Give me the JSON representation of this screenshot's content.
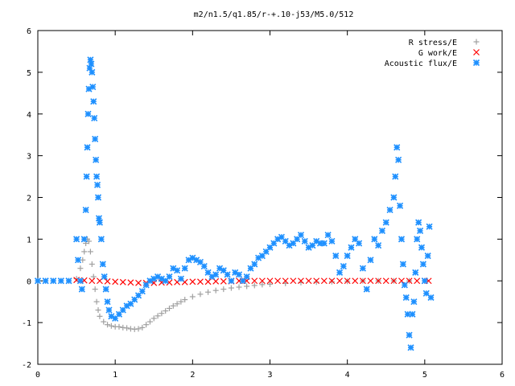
{
  "chart_data": {
    "type": "scatter",
    "title": "m2/n1.5/q1.85/r-+.10-j53/M5.0/512",
    "xlabel": "",
    "ylabel": "",
    "xlim": [
      0,
      6
    ],
    "ylim": [
      -2,
      6
    ],
    "xticks": [
      "0",
      "1",
      "2",
      "3",
      "4",
      "5",
      "6"
    ],
    "yticks": [
      "-2",
      "-1",
      "0",
      "1",
      "2",
      "3",
      "4",
      "5",
      "6"
    ],
    "grid": false,
    "legend_position": "top-right",
    "series": [
      {
        "name": "R stress/E",
        "marker": "plus",
        "color": "#a0a0a0",
        "points": [
          [
            0.0,
            0.0
          ],
          [
            0.1,
            0.0
          ],
          [
            0.2,
            0.0
          ],
          [
            0.3,
            0.0
          ],
          [
            0.4,
            0.0
          ],
          [
            0.5,
            0.05
          ],
          [
            0.55,
            0.3
          ],
          [
            0.58,
            0.5
          ],
          [
            0.6,
            0.7
          ],
          [
            0.62,
            0.9
          ],
          [
            0.64,
            1.0
          ],
          [
            0.66,
            0.95
          ],
          [
            0.68,
            0.7
          ],
          [
            0.7,
            0.4
          ],
          [
            0.72,
            0.1
          ],
          [
            0.74,
            -0.2
          ],
          [
            0.76,
            -0.5
          ],
          [
            0.78,
            -0.7
          ],
          [
            0.8,
            -0.85
          ],
          [
            0.85,
            -0.98
          ],
          [
            0.9,
            -1.05
          ],
          [
            0.95,
            -1.08
          ],
          [
            1.0,
            -1.1
          ],
          [
            1.05,
            -1.1
          ],
          [
            1.1,
            -1.12
          ],
          [
            1.15,
            -1.13
          ],
          [
            1.2,
            -1.15
          ],
          [
            1.25,
            -1.16
          ],
          [
            1.3,
            -1.15
          ],
          [
            1.35,
            -1.12
          ],
          [
            1.4,
            -1.05
          ],
          [
            1.45,
            -0.98
          ],
          [
            1.5,
            -0.9
          ],
          [
            1.55,
            -0.84
          ],
          [
            1.6,
            -0.78
          ],
          [
            1.65,
            -0.72
          ],
          [
            1.7,
            -0.66
          ],
          [
            1.75,
            -0.6
          ],
          [
            1.8,
            -0.55
          ],
          [
            1.85,
            -0.5
          ],
          [
            1.9,
            -0.45
          ],
          [
            2.0,
            -0.38
          ],
          [
            2.1,
            -0.32
          ],
          [
            2.2,
            -0.27
          ],
          [
            2.3,
            -0.23
          ],
          [
            2.4,
            -0.2
          ],
          [
            2.5,
            -0.17
          ],
          [
            2.6,
            -0.15
          ],
          [
            2.7,
            -0.13
          ],
          [
            2.8,
            -0.11
          ],
          [
            2.9,
            -0.09
          ],
          [
            3.0,
            -0.08
          ],
          [
            3.2,
            -0.06
          ],
          [
            3.4,
            -0.04
          ],
          [
            3.6,
            -0.03
          ],
          [
            3.8,
            -0.02
          ],
          [
            4.0,
            -0.01
          ],
          [
            4.2,
            0.0
          ],
          [
            4.4,
            0.0
          ],
          [
            4.6,
            0.0
          ],
          [
            4.8,
            0.0
          ],
          [
            5.0,
            0.0
          ]
        ]
      },
      {
        "name": "G work/E",
        "marker": "cross",
        "color": "#ff0000",
        "points": [
          [
            0.5,
            0.02
          ],
          [
            0.6,
            0.01
          ],
          [
            0.7,
            0.0
          ],
          [
            0.8,
            0.0
          ],
          [
            0.9,
            -0.01
          ],
          [
            1.0,
            -0.02
          ],
          [
            1.1,
            -0.03
          ],
          [
            1.2,
            -0.04
          ],
          [
            1.3,
            -0.05
          ],
          [
            1.4,
            -0.05
          ],
          [
            1.5,
            -0.05
          ],
          [
            1.6,
            -0.04
          ],
          [
            1.7,
            -0.04
          ],
          [
            1.8,
            -0.03
          ],
          [
            1.9,
            -0.03
          ],
          [
            2.0,
            -0.02
          ],
          [
            2.1,
            -0.02
          ],
          [
            2.2,
            -0.02
          ],
          [
            2.3,
            -0.01
          ],
          [
            2.4,
            -0.01
          ],
          [
            2.5,
            -0.01
          ],
          [
            2.6,
            0.0
          ],
          [
            2.7,
            0.0
          ],
          [
            2.8,
            0.0
          ],
          [
            2.9,
            0.0
          ],
          [
            3.0,
            0.0
          ],
          [
            3.1,
            0.0
          ],
          [
            3.2,
            0.0
          ],
          [
            3.3,
            0.0
          ],
          [
            3.4,
            0.0
          ],
          [
            3.5,
            0.0
          ],
          [
            3.6,
            0.0
          ],
          [
            3.7,
            0.0
          ],
          [
            3.8,
            0.0
          ],
          [
            3.9,
            0.0
          ],
          [
            4.0,
            0.0
          ],
          [
            4.1,
            0.0
          ],
          [
            4.2,
            0.0
          ],
          [
            4.3,
            0.0
          ],
          [
            4.4,
            0.0
          ],
          [
            4.5,
            0.0
          ],
          [
            4.6,
            0.0
          ],
          [
            4.7,
            0.0
          ],
          [
            4.8,
            0.0
          ],
          [
            4.9,
            0.0
          ],
          [
            5.0,
            0.0
          ],
          [
            5.05,
            0.0
          ]
        ]
      },
      {
        "name": "Acoustic flux/E",
        "marker": "star",
        "color": "#1e90ff",
        "points": [
          [
            0.0,
            0.0
          ],
          [
            0.1,
            0.0
          ],
          [
            0.2,
            0.0
          ],
          [
            0.3,
            0.0
          ],
          [
            0.4,
            0.0
          ],
          [
            0.5,
            1.0
          ],
          [
            0.52,
            0.5
          ],
          [
            0.55,
            0.0
          ],
          [
            0.57,
            -0.2
          ],
          [
            0.6,
            1.0
          ],
          [
            0.62,
            1.7
          ],
          [
            0.63,
            2.5
          ],
          [
            0.64,
            3.2
          ],
          [
            0.65,
            4.0
          ],
          [
            0.66,
            4.6
          ],
          [
            0.67,
            5.1
          ],
          [
            0.68,
            5.3
          ],
          [
            0.69,
            5.2
          ],
          [
            0.7,
            5.0
          ],
          [
            0.71,
            4.65
          ],
          [
            0.72,
            4.3
          ],
          [
            0.73,
            3.9
          ],
          [
            0.74,
            3.4
          ],
          [
            0.75,
            2.9
          ],
          [
            0.76,
            2.5
          ],
          [
            0.77,
            2.3
          ],
          [
            0.78,
            2.0
          ],
          [
            0.79,
            1.5
          ],
          [
            0.8,
            1.4
          ],
          [
            0.82,
            1.0
          ],
          [
            0.84,
            0.4
          ],
          [
            0.86,
            0.1
          ],
          [
            0.88,
            -0.2
          ],
          [
            0.9,
            -0.5
          ],
          [
            0.92,
            -0.7
          ],
          [
            0.95,
            -0.85
          ],
          [
            1.0,
            -0.9
          ],
          [
            1.05,
            -0.8
          ],
          [
            1.1,
            -0.7
          ],
          [
            1.15,
            -0.6
          ],
          [
            1.2,
            -0.55
          ],
          [
            1.25,
            -0.45
          ],
          [
            1.3,
            -0.35
          ],
          [
            1.35,
            -0.25
          ],
          [
            1.4,
            -0.1
          ],
          [
            1.45,
            0.0
          ],
          [
            1.5,
            0.05
          ],
          [
            1.55,
            0.1
          ],
          [
            1.6,
            0.05
          ],
          [
            1.65,
            0.0
          ],
          [
            1.7,
            0.1
          ],
          [
            1.75,
            0.3
          ],
          [
            1.8,
            0.25
          ],
          [
            1.85,
            0.05
          ],
          [
            1.9,
            0.3
          ],
          [
            1.95,
            0.5
          ],
          [
            2.0,
            0.55
          ],
          [
            2.05,
            0.5
          ],
          [
            2.1,
            0.45
          ],
          [
            2.15,
            0.35
          ],
          [
            2.2,
            0.2
          ],
          [
            2.25,
            0.1
          ],
          [
            2.3,
            0.15
          ],
          [
            2.35,
            0.3
          ],
          [
            2.4,
            0.25
          ],
          [
            2.45,
            0.15
          ],
          [
            2.5,
            0.0
          ],
          [
            2.55,
            0.2
          ],
          [
            2.6,
            0.15
          ],
          [
            2.65,
            0.0
          ],
          [
            2.7,
            0.1
          ],
          [
            2.75,
            0.3
          ],
          [
            2.8,
            0.4
          ],
          [
            2.85,
            0.55
          ],
          [
            2.9,
            0.6
          ],
          [
            2.95,
            0.7
          ],
          [
            3.0,
            0.8
          ],
          [
            3.05,
            0.9
          ],
          [
            3.1,
            1.0
          ],
          [
            3.15,
            1.05
          ],
          [
            3.2,
            0.95
          ],
          [
            3.25,
            0.85
          ],
          [
            3.3,
            0.9
          ],
          [
            3.35,
            1.0
          ],
          [
            3.4,
            1.1
          ],
          [
            3.45,
            0.95
          ],
          [
            3.5,
            0.8
          ],
          [
            3.55,
            0.85
          ],
          [
            3.6,
            0.95
          ],
          [
            3.65,
            0.9
          ],
          [
            3.7,
            0.9
          ],
          [
            3.75,
            1.1
          ],
          [
            3.8,
            0.95
          ],
          [
            3.85,
            0.6
          ],
          [
            3.9,
            0.2
          ],
          [
            3.95,
            0.35
          ],
          [
            4.0,
            0.6
          ],
          [
            4.05,
            0.8
          ],
          [
            4.1,
            1.0
          ],
          [
            4.15,
            0.9
          ],
          [
            4.2,
            0.3
          ],
          [
            4.25,
            -0.2
          ],
          [
            4.3,
            0.5
          ],
          [
            4.35,
            1.0
          ],
          [
            4.4,
            0.85
          ],
          [
            4.45,
            1.2
          ],
          [
            4.5,
            1.4
          ],
          [
            4.55,
            1.7
          ],
          [
            4.6,
            2.0
          ],
          [
            4.62,
            2.5
          ],
          [
            4.64,
            3.2
          ],
          [
            4.66,
            2.9
          ],
          [
            4.68,
            1.8
          ],
          [
            4.7,
            1.0
          ],
          [
            4.72,
            0.4
          ],
          [
            4.74,
            -0.1
          ],
          [
            4.76,
            -0.4
          ],
          [
            4.78,
            -0.8
          ],
          [
            4.8,
            -1.3
          ],
          [
            4.82,
            -1.6
          ],
          [
            4.84,
            -0.8
          ],
          [
            4.86,
            -0.5
          ],
          [
            4.88,
            0.2
          ],
          [
            4.9,
            1.0
          ],
          [
            4.92,
            1.4
          ],
          [
            4.94,
            1.2
          ],
          [
            4.96,
            0.8
          ],
          [
            4.98,
            0.4
          ],
          [
            5.0,
            0.0
          ],
          [
            5.02,
            -0.3
          ],
          [
            5.04,
            0.6
          ],
          [
            5.06,
            1.3
          ],
          [
            5.08,
            -0.4
          ]
        ]
      }
    ]
  }
}
